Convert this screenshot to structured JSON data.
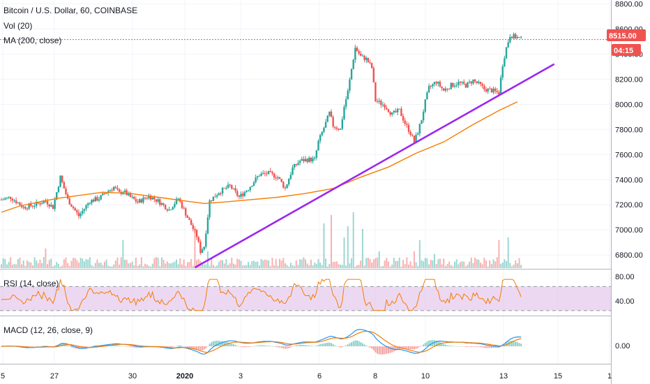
{
  "legend": {
    "title": "Bitcoin / U.S. Dollar, 60, COINBASE",
    "vol": "Vol (20)",
    "ma": "MA (200, close)",
    "rsi": "RSI (14, close)",
    "macd": "MACD (12, 26, close, 9)"
  },
  "price_tag": {
    "value": "8515.00",
    "countdown": "04:15"
  },
  "colors": {
    "up": "#26a69a",
    "down": "#ef5350",
    "ma": "#f57c00",
    "trendline": "#9c27f0",
    "rsi": "#f57c00",
    "rsi_band": "#e1bee7",
    "macd": "#2196f3",
    "signal": "#f57c00",
    "tag": "#ef5350"
  },
  "chart_data": {
    "type": "candlestick",
    "y_axis": {
      "ticks": [
        "8800.00",
        "8600.00",
        "8400.00",
        "8200.00",
        "8000.00",
        "7800.00",
        "7600.00",
        "7400.00",
        "7200.00",
        "7000.00",
        "6800.00"
      ],
      "range": [
        6690,
        8830
      ]
    },
    "x_axis": {
      "ticks": [
        "5",
        "27",
        "30",
        "2020",
        "3",
        "6",
        "8",
        "10",
        "13",
        "15",
        "1"
      ]
    },
    "close_path": [
      [
        0,
        7240
      ],
      [
        5,
        7260
      ],
      [
        12,
        7180
      ],
      [
        18,
        7200
      ],
      [
        24,
        7230
      ],
      [
        28,
        7180
      ],
      [
        32,
        7420
      ],
      [
        36,
        7240
      ],
      [
        42,
        7110
      ],
      [
        48,
        7230
      ],
      [
        53,
        7250
      ],
      [
        57,
        7300
      ],
      [
        61,
        7340
      ],
      [
        64,
        7290
      ],
      [
        66,
        7310
      ],
      [
        70,
        7260
      ],
      [
        74,
        7220
      ],
      [
        80,
        7270
      ],
      [
        85,
        7230
      ],
      [
        91,
        7160
      ],
      [
        96,
        7250
      ],
      [
        100,
        7130
      ],
      [
        104,
        7010
      ],
      [
        106,
        6950
      ],
      [
        108,
        6830
      ],
      [
        110,
        6870
      ],
      [
        113,
        7230
      ],
      [
        118,
        7300
      ],
      [
        124,
        7350
      ],
      [
        129,
        7260
      ],
      [
        134,
        7330
      ],
      [
        140,
        7440
      ],
      [
        145,
        7450
      ],
      [
        150,
        7420
      ],
      [
        154,
        7330
      ],
      [
        158,
        7490
      ],
      [
        162,
        7550
      ],
      [
        166,
        7560
      ],
      [
        170,
        7560
      ],
      [
        172,
        7700
      ],
      [
        176,
        7850
      ],
      [
        178,
        7930
      ],
      [
        180,
        7830
      ],
      [
        184,
        7800
      ],
      [
        186,
        7980
      ],
      [
        188,
        8100
      ],
      [
        190,
        8280
      ],
      [
        192,
        8450
      ],
      [
        195,
        8380
      ],
      [
        198,
        8360
      ],
      [
        201,
        8290
      ],
      [
        203,
        8030
      ],
      [
        208,
        7990
      ],
      [
        212,
        7920
      ],
      [
        216,
        7950
      ],
      [
        219,
        7850
      ],
      [
        222,
        7770
      ],
      [
        224,
        7700
      ],
      [
        226,
        7780
      ],
      [
        228,
        7880
      ],
      [
        230,
        8020
      ],
      [
        232,
        8130
      ],
      [
        236,
        8180
      ],
      [
        240,
        8110
      ],
      [
        244,
        8150
      ],
      [
        248,
        8170
      ],
      [
        252,
        8150
      ],
      [
        256,
        8190
      ],
      [
        260,
        8150
      ],
      [
        262,
        8120
      ],
      [
        266,
        8110
      ],
      [
        270,
        8090
      ],
      [
        272,
        8320
      ],
      [
        274,
        8450
      ],
      [
        276,
        8550
      ],
      [
        280,
        8530
      ],
      [
        282,
        8520
      ]
    ],
    "ma200": [
      [
        0,
        7140
      ],
      [
        10,
        7190
      ],
      [
        20,
        7220
      ],
      [
        30,
        7250
      ],
      [
        40,
        7270
      ],
      [
        55,
        7300
      ],
      [
        70,
        7290
      ],
      [
        85,
        7260
      ],
      [
        100,
        7230
      ],
      [
        110,
        7210
      ],
      [
        120,
        7220
      ],
      [
        135,
        7240
      ],
      [
        150,
        7260
      ],
      [
        165,
        7290
      ],
      [
        180,
        7330
      ],
      [
        195,
        7420
      ],
      [
        210,
        7500
      ],
      [
        225,
        7610
      ],
      [
        240,
        7700
      ],
      [
        255,
        7830
      ],
      [
        270,
        7950
      ],
      [
        280,
        8020
      ]
    ],
    "trendline": [
      [
        105,
        6700
      ],
      [
        300,
        8320
      ]
    ],
    "volume_spikes": [
      [
        24,
        0.35
      ],
      [
        66,
        0.5
      ],
      [
        105,
        0.7
      ],
      [
        112,
        0.3
      ],
      [
        175,
        0.8
      ],
      [
        179,
        0.95
      ],
      [
        186,
        0.55
      ],
      [
        188,
        0.75
      ],
      [
        191,
        1.0
      ],
      [
        196,
        0.7
      ],
      [
        205,
        0.3
      ],
      [
        224,
        0.3
      ],
      [
        227,
        0.5
      ],
      [
        235,
        0.25
      ],
      [
        270,
        0.5
      ],
      [
        275,
        0.55
      ]
    ],
    "rsi": {
      "ticks": [
        "80.00",
        "40.00"
      ],
      "range": [
        24,
        96
      ],
      "band": [
        30,
        70
      ]
    },
    "macd": {
      "ticks": [
        "0.00"
      ]
    }
  }
}
